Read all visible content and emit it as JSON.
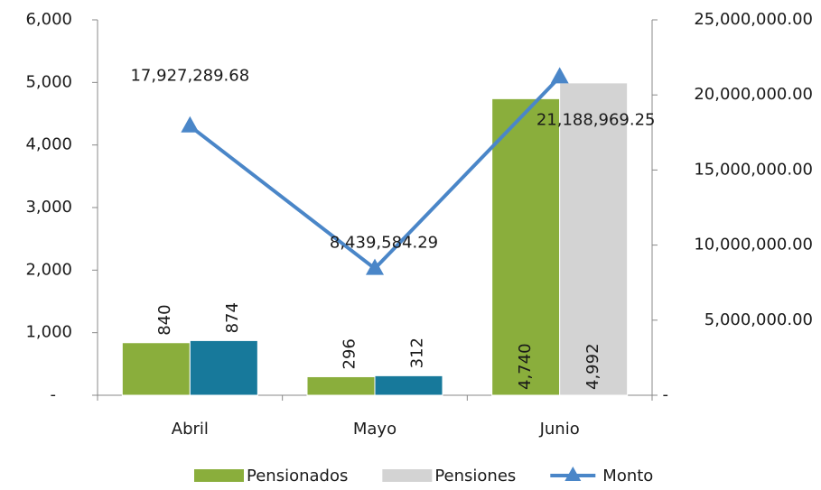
{
  "chart_data": {
    "type": "bar",
    "categories": [
      "Abril",
      "Mayo",
      "Junio"
    ],
    "series": [
      {
        "name": "Pensionados",
        "color": "#8aae3c",
        "values": [
          840,
          296,
          4740
        ],
        "value_labels": [
          "840",
          "296",
          "4,740"
        ]
      },
      {
        "name": "Pensiones",
        "color": "#d3d3d3",
        "colors": [
          "#17799b",
          "#17799b",
          "#d3d3d3"
        ],
        "values": [
          874,
          312,
          4992
        ],
        "value_labels": [
          "874",
          "312",
          "4,992"
        ]
      },
      {
        "name": "Monto",
        "type": "line",
        "axis": "y2",
        "color": "#4a86c8",
        "values": [
          17927289.68,
          8439584.29,
          21188969.25
        ],
        "value_labels": [
          "17,927,289.68",
          "8,439,584.29",
          "21,188,969.25"
        ]
      }
    ],
    "ylim": [
      0,
      6000
    ],
    "yticks": [
      {
        "value": 0,
        "label": "-"
      },
      {
        "value": 1000,
        "label": "1,000"
      },
      {
        "value": 2000,
        "label": "2,000"
      },
      {
        "value": 3000,
        "label": "3,000"
      },
      {
        "value": 4000,
        "label": "4,000"
      },
      {
        "value": 5000,
        "label": "5,000"
      },
      {
        "value": 6000,
        "label": "6,000"
      }
    ],
    "y2lim": [
      0,
      25000000
    ],
    "y2ticks": [
      {
        "value": 0,
        "label": "-"
      },
      {
        "value": 5000000,
        "label": "5,000,000.00"
      },
      {
        "value": 10000000,
        "label": "10,000,000.00"
      },
      {
        "value": 15000000,
        "label": "15,000,000.00"
      },
      {
        "value": 20000000,
        "label": "20,000,000.00"
      },
      {
        "value": 25000000,
        "label": "25,000,000.00"
      }
    ],
    "legend": "bottom",
    "grid": false
  }
}
